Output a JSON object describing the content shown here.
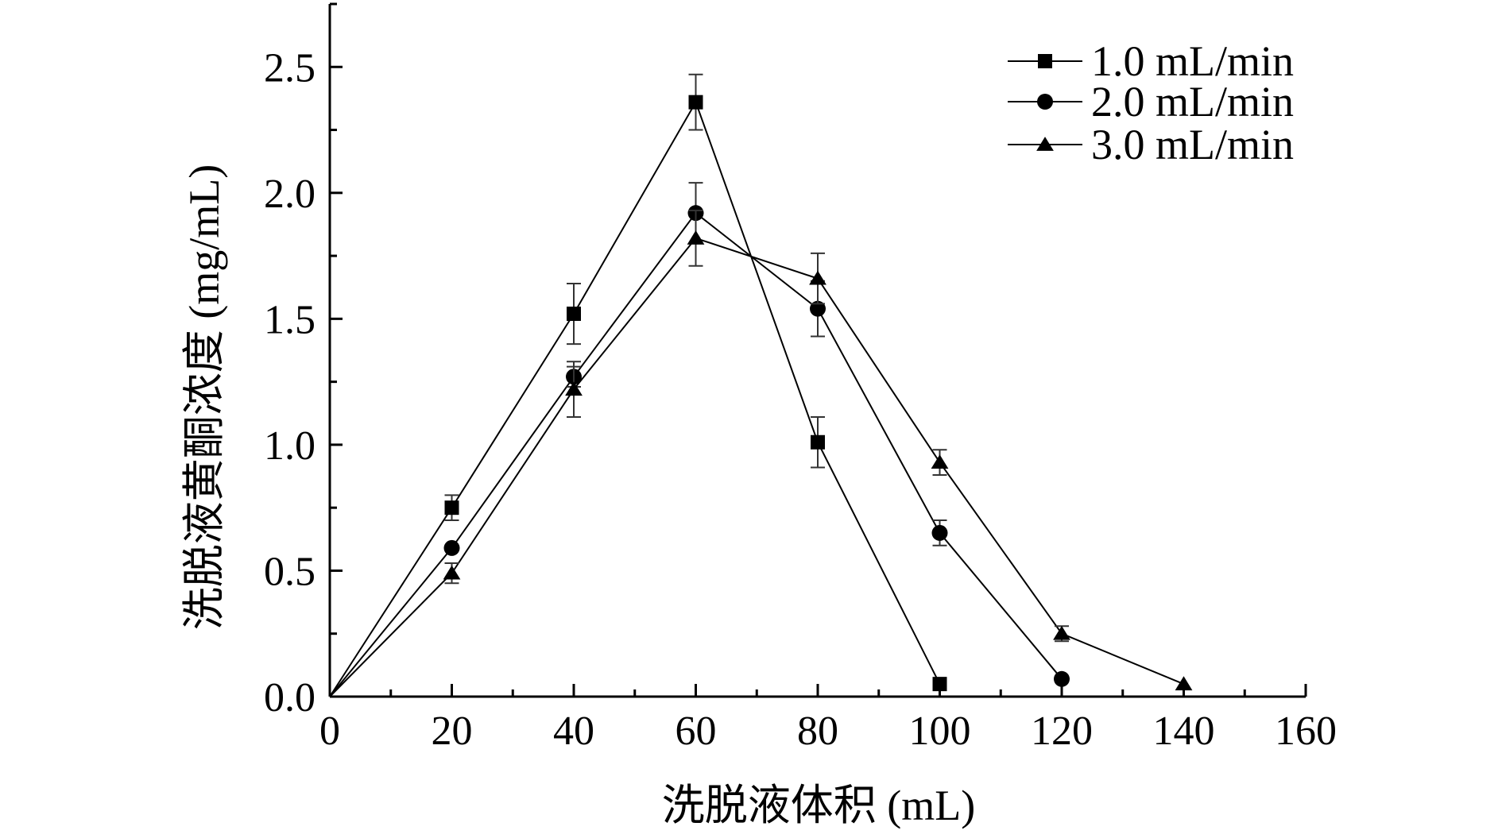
{
  "chart_data": {
    "type": "line",
    "title": "",
    "xlabel": "洗脱液体积 (mL)",
    "ylabel": "洗脱液黄酮浓度 (mg/mL)",
    "xlim": [
      0,
      160
    ],
    "ylim": [
      0,
      2.75
    ],
    "x_ticks": [
      0,
      20,
      40,
      60,
      80,
      100,
      120,
      140,
      160
    ],
    "x_tick_labels": [
      "0",
      "20",
      "40",
      "60",
      "80",
      "100",
      "120",
      "140",
      "160"
    ],
    "y_ticks": [
      0,
      0.5,
      1.0,
      1.5,
      2.0,
      2.5
    ],
    "y_tick_labels": [
      "0.0",
      "0.5",
      "1.0",
      "1.5",
      "2.0",
      "2.5"
    ],
    "grid": false,
    "legend_position": "top-right",
    "series": [
      {
        "name": "1.0 mL/min",
        "marker": "square",
        "color": "#000000",
        "points": [
          {
            "x": 0,
            "y": 0.0,
            "marker": false
          },
          {
            "x": 20,
            "y": 0.75,
            "err": 0.05
          },
          {
            "x": 40,
            "y": 1.52,
            "err": 0.12
          },
          {
            "x": 60,
            "y": 2.36,
            "err": 0.11
          },
          {
            "x": 80,
            "y": 1.01,
            "err": 0.1
          },
          {
            "x": 100,
            "y": 0.05
          }
        ]
      },
      {
        "name": "2.0 mL/min",
        "marker": "circle",
        "color": "#000000",
        "points": [
          {
            "x": 0,
            "y": 0.0,
            "marker": false
          },
          {
            "x": 20,
            "y": 0.59
          },
          {
            "x": 40,
            "y": 1.27,
            "err": 0.04
          },
          {
            "x": 60,
            "y": 1.92,
            "err": 0.12
          },
          {
            "x": 80,
            "y": 1.54,
            "err": 0.11
          },
          {
            "x": 100,
            "y": 0.65,
            "err": 0.05
          },
          {
            "x": 120,
            "y": 0.07
          }
        ]
      },
      {
        "name": "3.0 mL/min",
        "marker": "triangle",
        "color": "#000000",
        "points": [
          {
            "x": 0,
            "y": 0.0,
            "marker": false
          },
          {
            "x": 20,
            "y": 0.49,
            "err": 0.04
          },
          {
            "x": 40,
            "y": 1.22,
            "err": 0.11
          },
          {
            "x": 60,
            "y": 1.82,
            "err": 0.11
          },
          {
            "x": 80,
            "y": 1.66,
            "err": 0.1
          },
          {
            "x": 100,
            "y": 0.93,
            "err": 0.05
          },
          {
            "x": 120,
            "y": 0.25,
            "err": 0.03
          },
          {
            "x": 140,
            "y": 0.05
          }
        ]
      }
    ]
  }
}
